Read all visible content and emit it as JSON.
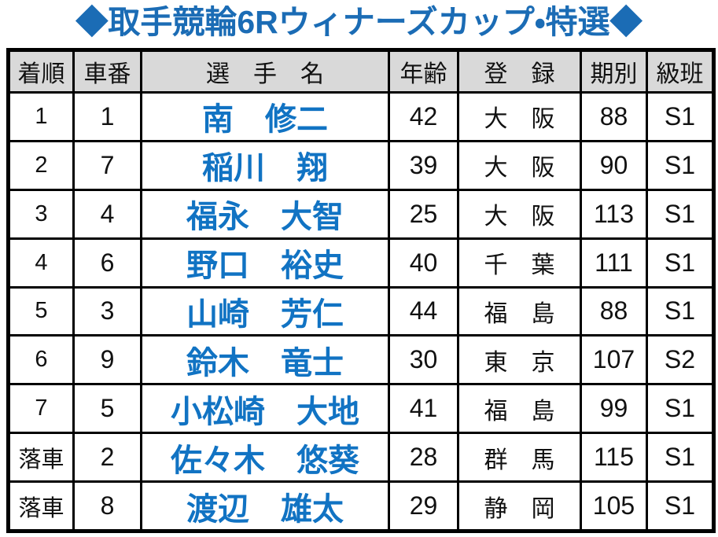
{
  "title": "◆取手競輪6Rウィナーズカップ・特選◆",
  "colors": {
    "title_blue": "#1b6cb5",
    "name_blue": "#1173c3",
    "header_bg": "#d9d9d9",
    "border": "#000000",
    "background": "#ffffff"
  },
  "table": {
    "headers": [
      "着順",
      "車番",
      "選　手　名",
      "年齢",
      "登　録",
      "期別",
      "級班"
    ],
    "rows": [
      {
        "rank": "1",
        "car": "1",
        "name": "南　修二",
        "age": "42",
        "reg": "大　阪",
        "period": "88",
        "grade": "S1"
      },
      {
        "rank": "2",
        "car": "7",
        "name": "稲川　翔",
        "age": "39",
        "reg": "大　阪",
        "period": "90",
        "grade": "S1"
      },
      {
        "rank": "3",
        "car": "4",
        "name": "福永　大智",
        "age": "25",
        "reg": "大　阪",
        "period": "113",
        "grade": "S1"
      },
      {
        "rank": "4",
        "car": "6",
        "name": "野口　裕史",
        "age": "40",
        "reg": "千　葉",
        "period": "111",
        "grade": "S1"
      },
      {
        "rank": "5",
        "car": "3",
        "name": "山崎　芳仁",
        "age": "44",
        "reg": "福　島",
        "period": "88",
        "grade": "S1"
      },
      {
        "rank": "6",
        "car": "9",
        "name": "鈴木　竜士",
        "age": "30",
        "reg": "東　京",
        "period": "107",
        "grade": "S2"
      },
      {
        "rank": "7",
        "car": "5",
        "name": "小松崎　大地",
        "age": "41",
        "reg": "福　島",
        "period": "99",
        "grade": "S1"
      },
      {
        "rank": "落車",
        "car": "2",
        "name": "佐々木　悠葵",
        "age": "28",
        "reg": "群　馬",
        "period": "115",
        "grade": "S1"
      },
      {
        "rank": "落車",
        "car": "8",
        "name": "渡辺　雄太",
        "age": "29",
        "reg": "静　岡",
        "period": "105",
        "grade": "S1"
      }
    ]
  }
}
